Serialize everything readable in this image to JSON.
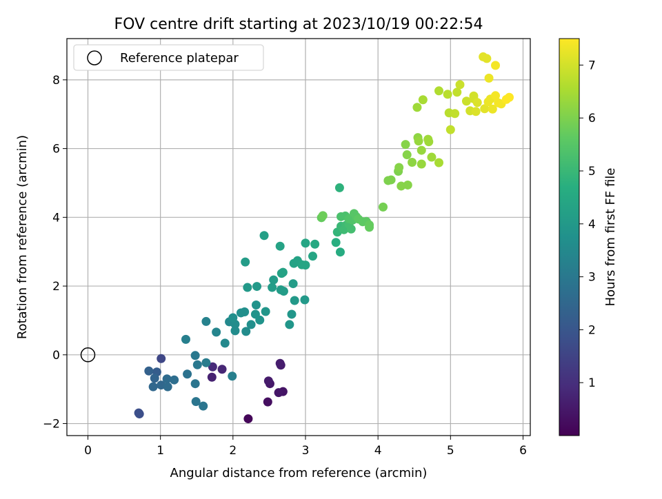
{
  "chart_data": {
    "type": "scatter",
    "title": "FOV centre drift starting at 2023/10/19 00:22:54",
    "xlabel": "Angular distance from reference (arcmin)",
    "ylabel": "Rotation from reference (arcmin)",
    "xlim": [
      -0.29,
      6.1
    ],
    "ylim": [
      -2.35,
      9.2
    ],
    "xticks": [
      0,
      1,
      2,
      3,
      4,
      5,
      6
    ],
    "yticks": [
      -2,
      0,
      2,
      4,
      6,
      8
    ],
    "xtick_labels": [
      "0",
      "1",
      "2",
      "3",
      "4",
      "5",
      "6"
    ],
    "ytick_labels": [
      "−2",
      "0",
      "2",
      "4",
      "6",
      "8"
    ],
    "grid": true,
    "legend": {
      "position": "top-left",
      "label": "Reference platepar"
    },
    "reference_point": {
      "x": 0,
      "y": 0
    },
    "colorbar": {
      "label": "Hours from first FF file",
      "range": [
        0.0,
        7.5
      ],
      "ticks": [
        1,
        2,
        3,
        4,
        5,
        6,
        7
      ],
      "tick_labels": [
        "1",
        "2",
        "3",
        "4",
        "5",
        "6",
        "7"
      ],
      "colormap": "viridis"
    },
    "points": [
      [
        2.21,
        -1.86,
        0.1
      ],
      [
        2.48,
        -1.37,
        0.3
      ],
      [
        2.69,
        -1.07,
        0.4
      ],
      [
        2.63,
        -1.1,
        0.45
      ],
      [
        2.51,
        -0.84,
        0.5
      ],
      [
        2.49,
        -0.76,
        0.55
      ],
      [
        2.66,
        -0.3,
        0.6
      ],
      [
        2.65,
        -0.25,
        0.6
      ],
      [
        1.71,
        -0.65,
        0.7
      ],
      [
        1.85,
        -0.42,
        0.8
      ],
      [
        1.72,
        -0.35,
        0.9
      ],
      [
        1.01,
        -0.11,
        1.6
      ],
      [
        0.7,
        -1.69,
        1.8
      ],
      [
        0.71,
        -1.72,
        1.8
      ],
      [
        0.95,
        -0.5,
        2.2
      ],
      [
        0.84,
        -0.47,
        2.3
      ],
      [
        0.92,
        -0.68,
        2.4
      ],
      [
        0.9,
        -0.93,
        2.5
      ],
      [
        1.01,
        -0.88,
        2.5
      ],
      [
        1.1,
        -0.93,
        2.6
      ],
      [
        1.09,
        -0.7,
        2.6
      ],
      [
        1.19,
        -0.73,
        2.7
      ],
      [
        1.37,
        -0.56,
        2.8
      ],
      [
        1.48,
        -0.84,
        2.9
      ],
      [
        1.59,
        -1.49,
        2.9
      ],
      [
        1.49,
        -1.36,
        2.9
      ],
      [
        1.51,
        -0.29,
        3.0
      ],
      [
        1.48,
        -0.02,
        3.0
      ],
      [
        1.63,
        -0.23,
        3.1
      ],
      [
        1.99,
        -0.62,
        3.2
      ],
      [
        1.35,
        0.45,
        3.2
      ],
      [
        1.63,
        0.97,
        3.3
      ],
      [
        1.77,
        0.66,
        3.4
      ],
      [
        1.89,
        0.34,
        3.5
      ],
      [
        1.95,
        0.96,
        3.5
      ],
      [
        2.03,
        0.89,
        3.6
      ],
      [
        2.03,
        0.7,
        3.6
      ],
      [
        2.18,
        0.68,
        3.6
      ],
      [
        2.25,
        0.88,
        3.7
      ],
      [
        2.0,
        1.08,
        3.7
      ],
      [
        2.11,
        1.22,
        3.7
      ],
      [
        2.16,
        1.25,
        3.7
      ],
      [
        2.31,
        1.18,
        3.8
      ],
      [
        2.37,
        1.01,
        3.8
      ],
      [
        2.32,
        1.45,
        3.8
      ],
      [
        2.45,
        1.26,
        3.9
      ],
      [
        2.78,
        0.88,
        3.9
      ],
      [
        2.81,
        1.18,
        3.9
      ],
      [
        2.85,
        1.58,
        4.0
      ],
      [
        2.99,
        1.6,
        4.0
      ],
      [
        2.2,
        1.96,
        4.0
      ],
      [
        2.33,
        1.99,
        4.0
      ],
      [
        2.54,
        1.96,
        4.1
      ],
      [
        2.56,
        2.18,
        4.1
      ],
      [
        2.66,
        1.89,
        4.1
      ],
      [
        2.7,
        1.85,
        4.1
      ],
      [
        2.83,
        2.07,
        4.1
      ],
      [
        2.17,
        2.7,
        4.1
      ],
      [
        2.43,
        3.47,
        4.2
      ],
      [
        2.65,
        3.16,
        4.3
      ],
      [
        2.67,
        2.37,
        4.3
      ],
      [
        2.69,
        2.4,
        4.3
      ],
      [
        2.84,
        2.66,
        4.3
      ],
      [
        2.89,
        2.74,
        4.3
      ],
      [
        2.95,
        2.62,
        4.4
      ],
      [
        3.0,
        2.61,
        4.4
      ],
      [
        3.0,
        3.25,
        4.4
      ],
      [
        3.1,
        2.87,
        4.4
      ],
      [
        3.13,
        3.22,
        4.5
      ],
      [
        3.48,
        2.99,
        4.6
      ],
      [
        3.42,
        3.27,
        4.7
      ],
      [
        3.47,
        4.86,
        4.8
      ],
      [
        3.44,
        3.57,
        4.9
      ],
      [
        3.49,
        3.74,
        5.0
      ],
      [
        3.53,
        3.64,
        5.1
      ],
      [
        3.56,
        3.77,
        5.1
      ],
      [
        3.6,
        3.8,
        5.2
      ],
      [
        3.63,
        3.66,
        5.2
      ],
      [
        3.49,
        4.02,
        5.3
      ],
      [
        3.55,
        4.04,
        5.3
      ],
      [
        3.6,
        3.96,
        5.4
      ],
      [
        3.65,
        3.92,
        5.4
      ],
      [
        3.67,
        4.11,
        5.5
      ],
      [
        3.7,
        4.02,
        5.5
      ],
      [
        3.73,
        3.95,
        5.6
      ],
      [
        3.79,
        3.87,
        5.6
      ],
      [
        3.84,
        3.88,
        5.6
      ],
      [
        3.88,
        3.71,
        5.7
      ],
      [
        3.88,
        3.78,
        5.7
      ],
      [
        3.22,
        3.99,
        5.7
      ],
      [
        3.24,
        4.05,
        5.8
      ],
      [
        4.07,
        4.3,
        5.9
      ],
      [
        4.14,
        5.07,
        6.0
      ],
      [
        4.18,
        5.09,
        6.0
      ],
      [
        4.28,
        5.34,
        6.0
      ],
      [
        4.29,
        5.45,
        6.1
      ],
      [
        4.32,
        4.91,
        6.1
      ],
      [
        4.38,
        6.12,
        6.1
      ],
      [
        4.4,
        5.82,
        6.1
      ],
      [
        4.41,
        4.94,
        6.1
      ],
      [
        4.47,
        5.6,
        6.2
      ],
      [
        4.55,
        6.32,
        6.2
      ],
      [
        4.56,
        6.22,
        6.3
      ],
      [
        4.54,
        7.2,
        6.4
      ],
      [
        4.62,
        7.42,
        6.5
      ],
      [
        4.6,
        5.95,
        6.3
      ],
      [
        4.6,
        5.55,
        6.3
      ],
      [
        4.69,
        6.27,
        6.4
      ],
      [
        4.7,
        6.2,
        6.4
      ],
      [
        4.74,
        5.75,
        6.4
      ],
      [
        4.84,
        5.59,
        6.5
      ],
      [
        4.84,
        7.68,
        6.6
      ],
      [
        4.96,
        7.58,
        6.7
      ],
      [
        4.98,
        7.04,
        6.7
      ],
      [
        5.0,
        6.55,
        6.8
      ],
      [
        5.06,
        7.02,
        6.8
      ],
      [
        5.09,
        7.64,
        6.8
      ],
      [
        5.13,
        7.86,
        6.9
      ],
      [
        5.22,
        7.38,
        6.9
      ],
      [
        5.27,
        7.1,
        7.0
      ],
      [
        5.32,
        7.53,
        7.0
      ],
      [
        5.32,
        7.45,
        7.0
      ],
      [
        5.35,
        7.08,
        7.1
      ],
      [
        5.37,
        7.34,
        7.1
      ],
      [
        5.45,
        8.67,
        7.2
      ],
      [
        5.47,
        7.16,
        7.2
      ],
      [
        5.5,
        8.62,
        7.2
      ],
      [
        5.52,
        7.36,
        7.3
      ],
      [
        5.53,
        8.05,
        7.3
      ],
      [
        5.55,
        7.44,
        7.3
      ],
      [
        5.58,
        7.15,
        7.3
      ],
      [
        5.62,
        7.54,
        7.4
      ],
      [
        5.62,
        8.42,
        7.4
      ],
      [
        5.66,
        7.33,
        7.4
      ],
      [
        5.7,
        7.3,
        7.4
      ],
      [
        5.77,
        7.43,
        7.5
      ],
      [
        5.81,
        7.49,
        7.5
      ]
    ]
  }
}
